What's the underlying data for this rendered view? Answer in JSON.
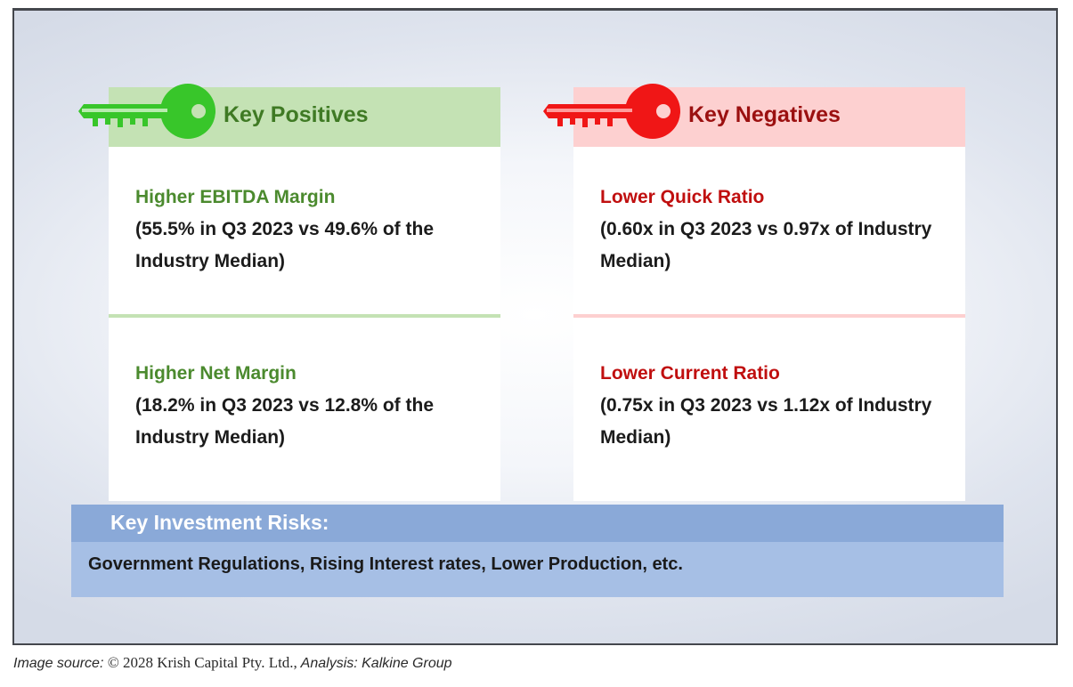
{
  "positives": {
    "title": "Key Positives",
    "accent_color": "#38c62a",
    "items": [
      {
        "title": "Higher EBITDA Margin",
        "detail": "(55.5% in Q3 2023 vs 49.6% of the Industry Median)"
      },
      {
        "title": "Higher Net Margin",
        "detail": "(18.2% in Q3 2023 vs 12.8% of the Industry Median)"
      }
    ]
  },
  "negatives": {
    "title": "Key Negatives",
    "accent_color": "#f01616",
    "items": [
      {
        "title": "Lower Quick Ratio",
        "detail": "(0.60x in Q3 2023 vs 0.97x of Industry Median)"
      },
      {
        "title": "Lower Current Ratio",
        "detail": "(0.75x in Q3 2023 vs 1.12x of Industry Median)"
      }
    ]
  },
  "risks": {
    "title": "Key Investment Risks:",
    "body": "Government Regulations, Rising Interest rates, Lower Production, etc."
  },
  "caption": {
    "prefix": "Image source: ",
    "source": "© 2028 Krish Capital Pty. Ltd.,",
    "analysis": " Analysis: Kalkine Group"
  }
}
